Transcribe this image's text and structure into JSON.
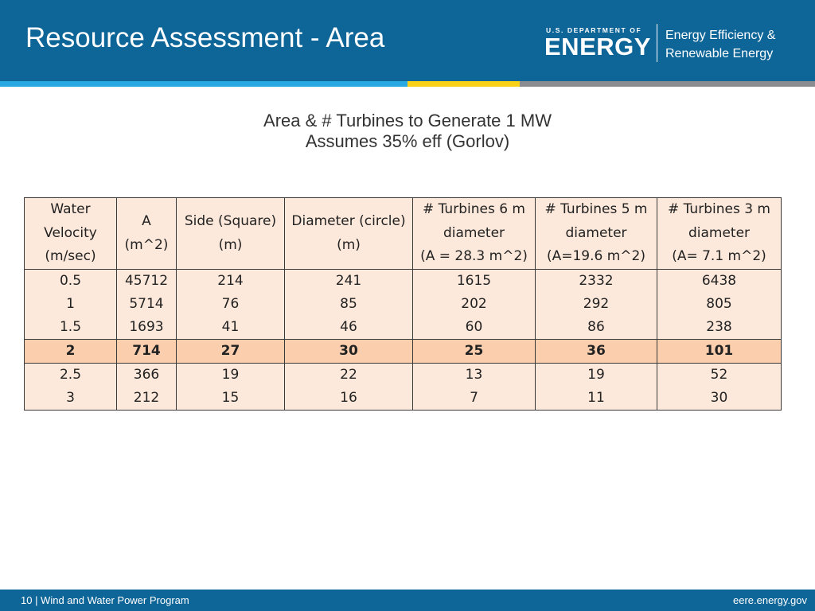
{
  "header": {
    "title": "Resource Assessment - Area",
    "logo_small": "U.S. DEPARTMENT OF",
    "logo_big": "ENERGY",
    "office_line1": "Energy Efficiency &",
    "office_line2": "Renewable Energy"
  },
  "subtitle": {
    "line1": "Area & # Turbines to Generate 1 MW",
    "line2": "Assumes 35% eff (Gorlov)"
  },
  "table": {
    "headers": [
      [
        "Water",
        "Velocity",
        "(m/sec)"
      ],
      [
        "A",
        "(m^2)"
      ],
      [
        "Side (Square)",
        "(m)"
      ],
      [
        "Diameter (circle)",
        "(m)"
      ],
      [
        "#  Turbines 6 m",
        "diameter",
        "(A = 28.3 m^2)"
      ],
      [
        "# Turbines  5 m",
        "diameter",
        "(A=19.6 m^2)"
      ],
      [
        "# Turbines  3 m",
        "diameter",
        "(A= 7.1 m^2)"
      ]
    ],
    "rows": [
      [
        "0.5",
        "45712",
        "214",
        "241",
        "1615",
        "2332",
        "6438"
      ],
      [
        "1",
        "5714",
        "76",
        "85",
        "202",
        "292",
        "805"
      ],
      [
        "1.5",
        "1693",
        "41",
        "46",
        "60",
        "86",
        "238"
      ],
      [
        "2",
        "714",
        "27",
        "30",
        "25",
        "36",
        "101"
      ],
      [
        "2.5",
        "366",
        "19",
        "22",
        "13",
        "19",
        "52"
      ],
      [
        "3",
        "212",
        "15",
        "16",
        "7",
        "11",
        "30"
      ]
    ],
    "highlight_color": "#fbcfae",
    "cell_color": "#fde9db"
  },
  "footer": {
    "left": "10 | Wind and Water Power Program",
    "right": "eere.energy.gov"
  },
  "colors": {
    "header_blue": "#0e6597",
    "stripe_blue": "#28a9e1",
    "stripe_yellow": "#f8d118",
    "stripe_gray": "#8a8c8f"
  }
}
